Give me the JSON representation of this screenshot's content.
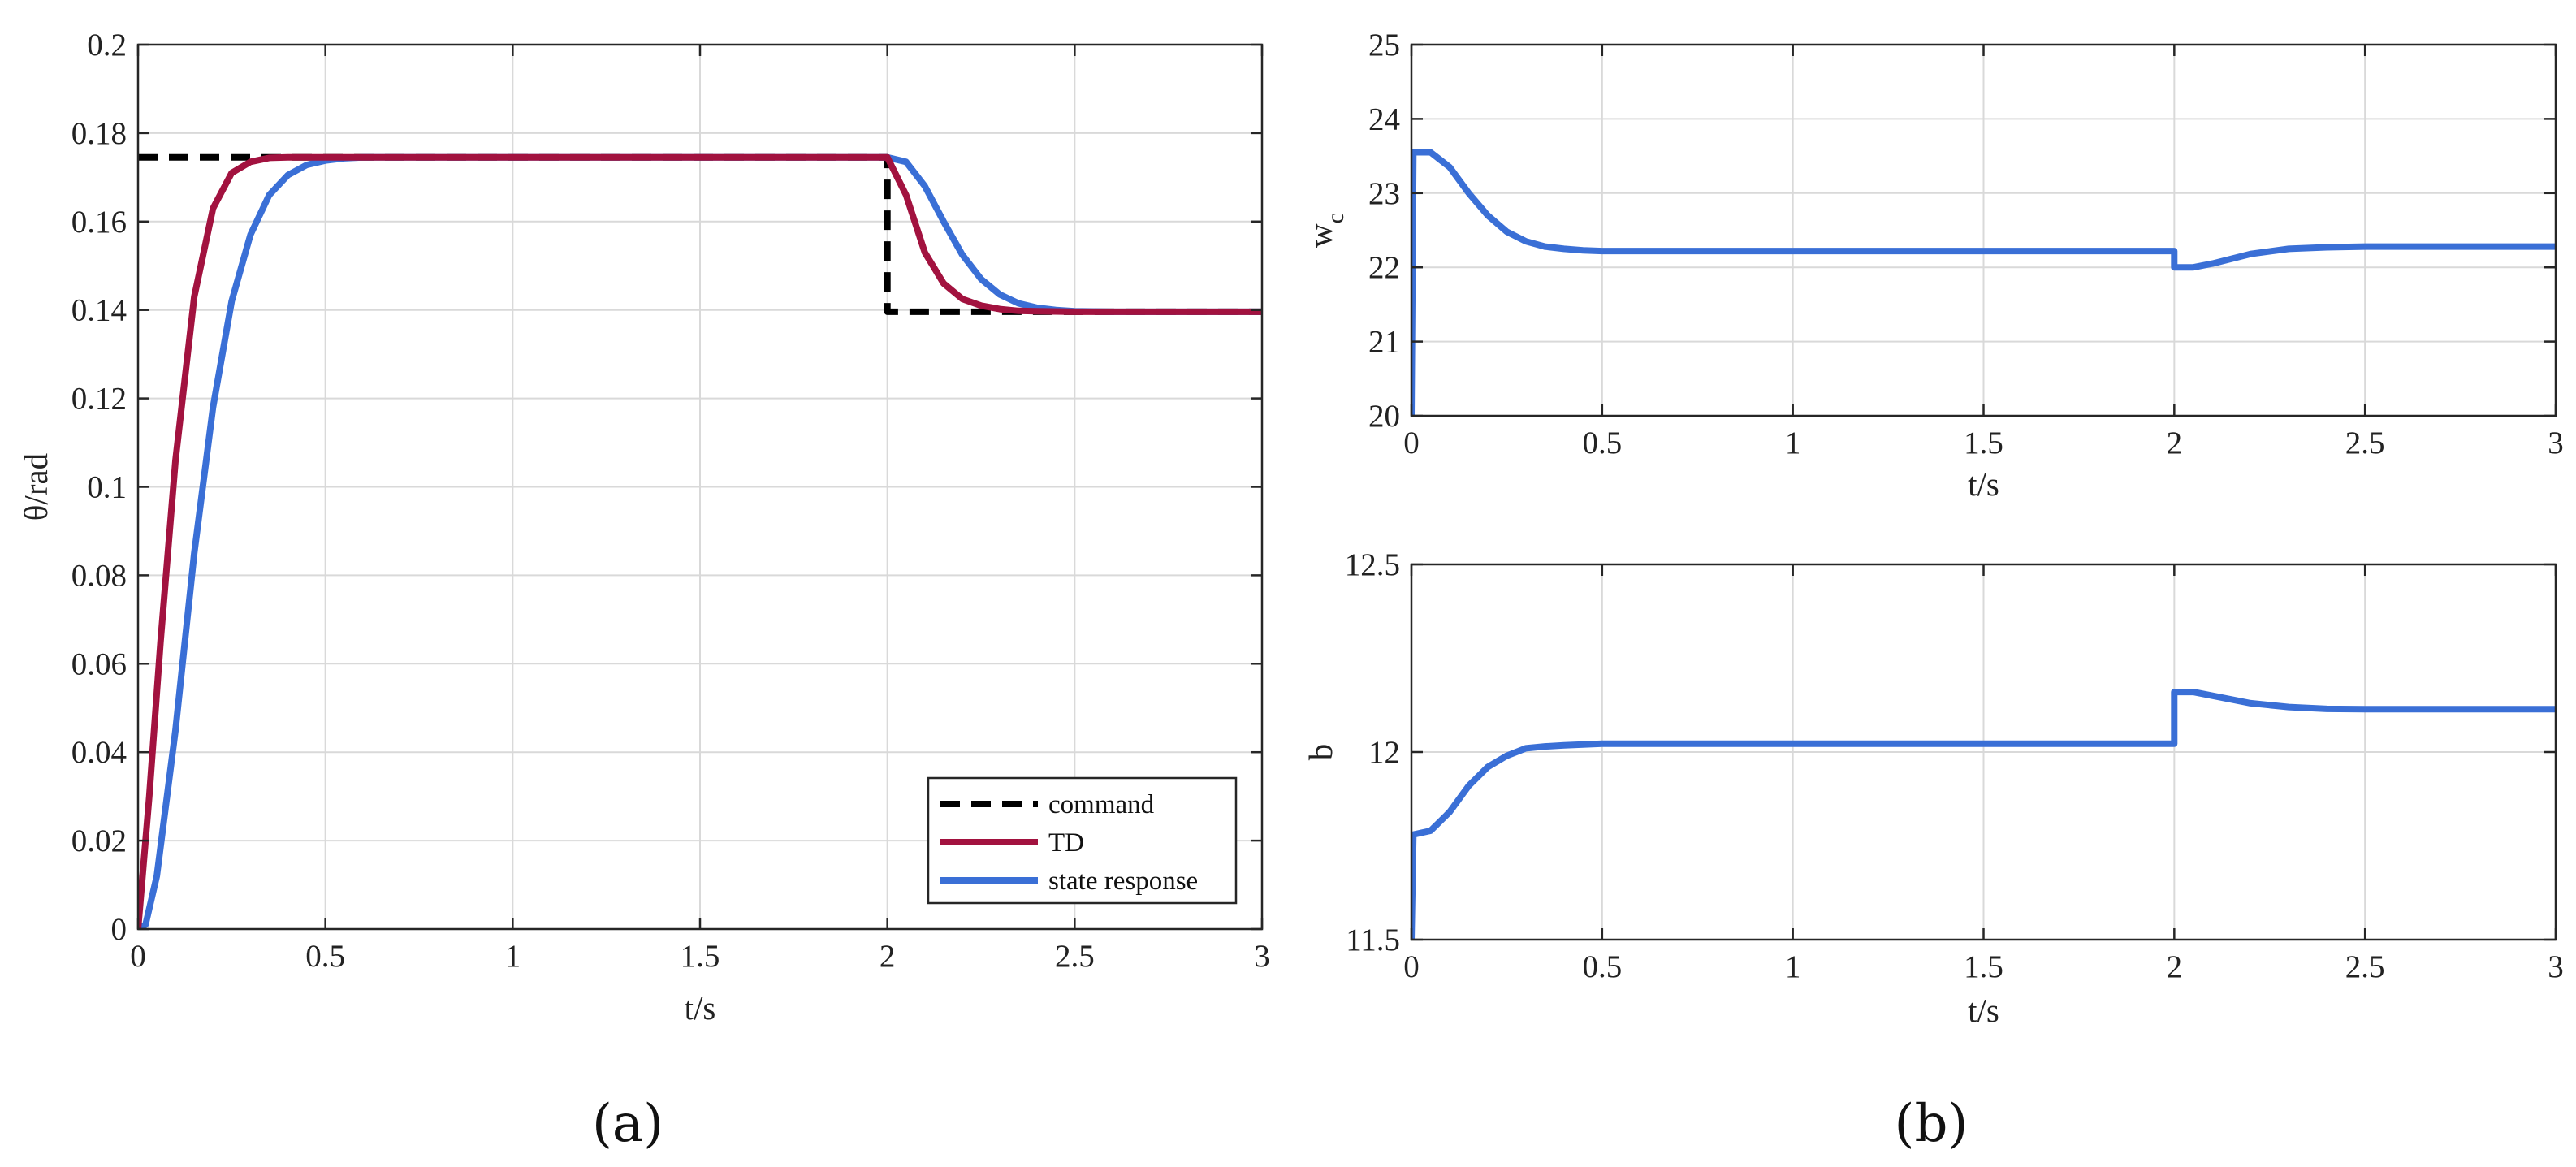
{
  "figure": {
    "caption_a": "(a)",
    "caption_b": "(b)"
  },
  "colors": {
    "command": "#000000",
    "td": "#A2123F",
    "state": "#3A6FD6"
  },
  "chart_data": [
    {
      "id": "a",
      "type": "line",
      "xlabel": "t/s",
      "ylabel": "θ/rad",
      "xlim": [
        0,
        3
      ],
      "ylim": [
        0,
        0.2
      ],
      "xticks": [
        "0",
        "0.5",
        "1",
        "1.5",
        "2",
        "2.5",
        "3"
      ],
      "yticks": [
        "0",
        "0.02",
        "0.04",
        "0.06",
        "0.08",
        "0.1",
        "0.12",
        "0.14",
        "0.16",
        "0.18",
        "0.2"
      ],
      "grid": true,
      "legend": {
        "placement": "bottom-right",
        "entries": [
          "command",
          "TD",
          "state response"
        ]
      },
      "series": [
        {
          "name": "command",
          "style": "dashed",
          "x": [
            0,
            2.0,
            2.0,
            3.0
          ],
          "y": [
            0.1745,
            0.1745,
            0.1396,
            0.1396
          ]
        },
        {
          "name": "TD",
          "style": "solid",
          "x": [
            0,
            0.03,
            0.06,
            0.1,
            0.15,
            0.2,
            0.25,
            0.3,
            0.35,
            0.4,
            0.45,
            0.5,
            0.6,
            2.0,
            2.05,
            2.1,
            2.15,
            2.2,
            2.25,
            2.3,
            2.35,
            2.4,
            2.5,
            3.0
          ],
          "y": [
            0,
            0.03,
            0.065,
            0.106,
            0.143,
            0.163,
            0.171,
            0.1735,
            0.1744,
            0.1745,
            0.1745,
            0.1745,
            0.1745,
            0.1745,
            0.166,
            0.153,
            0.146,
            0.1425,
            0.141,
            0.1402,
            0.1398,
            0.1397,
            0.1396,
            0.1396
          ]
        },
        {
          "name": "state response",
          "style": "solid",
          "x": [
            0,
            0.02,
            0.05,
            0.1,
            0.15,
            0.2,
            0.25,
            0.3,
            0.35,
            0.4,
            0.45,
            0.5,
            0.55,
            0.6,
            0.7,
            2.0,
            2.05,
            2.1,
            2.15,
            2.2,
            2.25,
            2.3,
            2.35,
            2.4,
            2.45,
            2.5,
            2.6,
            3.0
          ],
          "y": [
            0,
            0.001,
            0.012,
            0.045,
            0.085,
            0.118,
            0.142,
            0.157,
            0.166,
            0.1705,
            0.1728,
            0.1738,
            0.1743,
            0.1745,
            0.1745,
            0.1745,
            0.1735,
            0.168,
            0.16,
            0.1525,
            0.147,
            0.1435,
            0.1415,
            0.1405,
            0.14,
            0.1397,
            0.1396,
            0.1396
          ]
        }
      ]
    },
    {
      "id": "b-top",
      "type": "line",
      "xlabel": "t/s",
      "ylabel": "w",
      "ylabel_sub": "c",
      "xlim": [
        0,
        3
      ],
      "ylim": [
        20,
        25
      ],
      "xticks": [
        "0",
        "0.5",
        "1",
        "1.5",
        "2",
        "2.5",
        "3"
      ],
      "yticks": [
        "20",
        "21",
        "22",
        "23",
        "24",
        "25"
      ],
      "grid": true,
      "series": [
        {
          "name": "",
          "style": "solid",
          "x": [
            0,
            0.0,
            0.005,
            0.05,
            0.1,
            0.15,
            0.2,
            0.25,
            0.3,
            0.35,
            0.4,
            0.45,
            0.5,
            0.6,
            2.0,
            2.0,
            2.05,
            2.1,
            2.2,
            2.3,
            2.4,
            2.5,
            2.6,
            3.0
          ],
          "y": [
            20.0,
            20.0,
            23.55,
            23.55,
            23.35,
            23.0,
            22.7,
            22.48,
            22.35,
            22.28,
            22.25,
            22.23,
            22.22,
            22.22,
            22.22,
            22.0,
            22.0,
            22.05,
            22.18,
            22.25,
            22.27,
            22.28,
            22.28,
            22.28
          ]
        }
      ]
    },
    {
      "id": "b-bottom",
      "type": "line",
      "xlabel": "t/s",
      "ylabel": "b",
      "xlim": [
        0,
        3
      ],
      "ylim": [
        11.5,
        12.5
      ],
      "xticks": [
        "0",
        "0.5",
        "1",
        "1.5",
        "2",
        "2.5",
        "3"
      ],
      "yticks": [
        "11.5",
        "12",
        "12.5"
      ],
      "grid": true,
      "series": [
        {
          "name": "",
          "style": "solid",
          "x": [
            0,
            0.0,
            0.005,
            0.05,
            0.1,
            0.15,
            0.2,
            0.25,
            0.3,
            0.35,
            0.4,
            0.45,
            0.5,
            0.6,
            2.0,
            2.0,
            2.05,
            2.1,
            2.2,
            2.3,
            2.4,
            2.5,
            3.0
          ],
          "y": [
            11.5,
            11.5,
            11.78,
            11.79,
            11.84,
            11.91,
            11.96,
            11.99,
            12.01,
            12.015,
            12.018,
            12.02,
            12.022,
            12.022,
            12.022,
            12.16,
            12.16,
            12.15,
            12.13,
            12.12,
            12.115,
            12.114,
            12.114
          ]
        }
      ]
    }
  ]
}
